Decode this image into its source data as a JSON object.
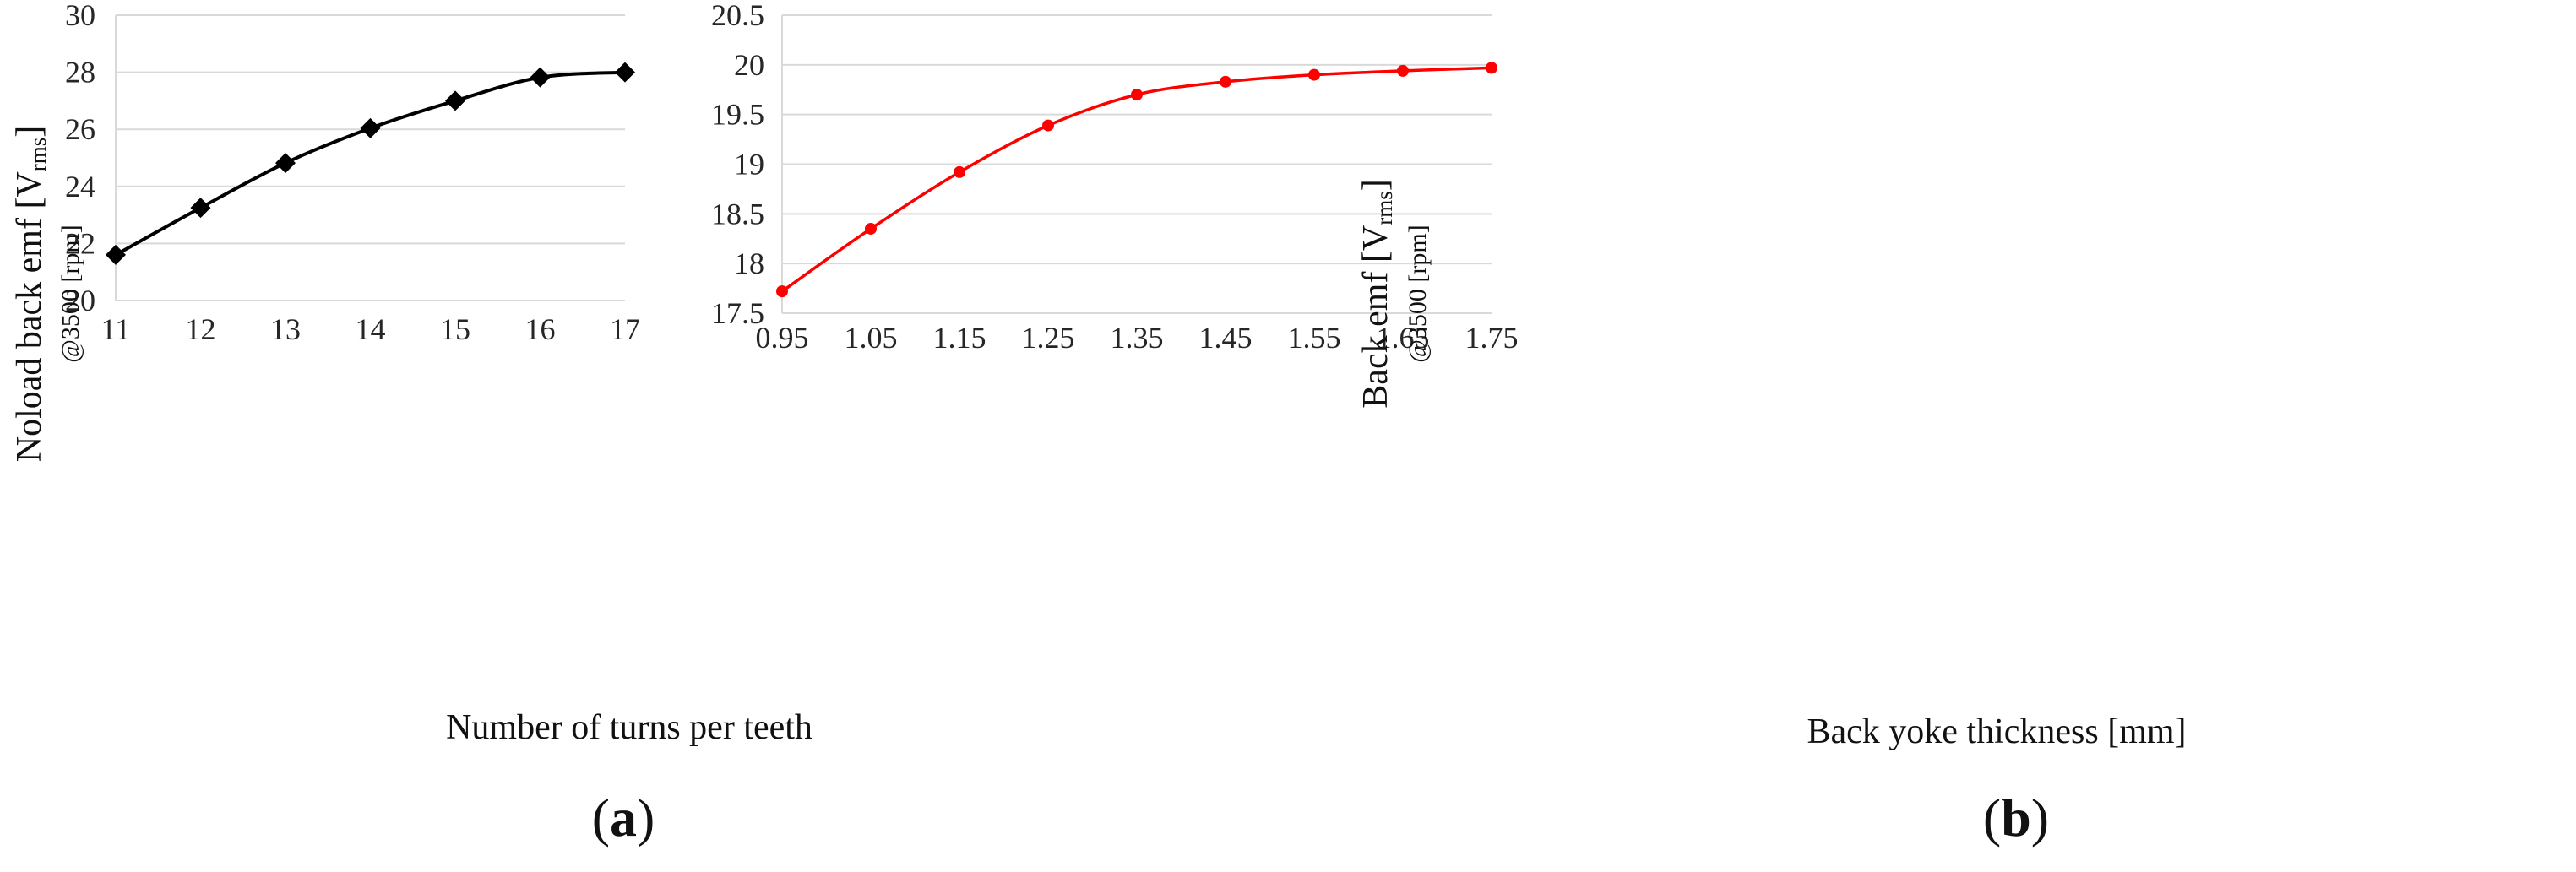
{
  "chart_data": [
    {
      "type": "line",
      "panel": "(a)",
      "panel_letter": "a",
      "xlabel": "Number of turns per teeth",
      "ylabel": {
        "main": "Noload back emf [V",
        "unit_sub": "rms",
        "close": "]",
        "condition": "@3500 [rpm]"
      },
      "x": [
        11,
        12,
        13,
        14,
        15,
        16,
        17
      ],
      "series": [
        {
          "values": [
            21.6,
            23.25,
            24.82,
            26.04,
            27.0,
            27.82,
            28.0
          ]
        }
      ],
      "xlim": [
        11,
        17
      ],
      "ylim": [
        20,
        30
      ],
      "xticks": [
        "11",
        "12",
        "13",
        "14",
        "15",
        "16",
        "17"
      ],
      "yticks": [
        "20",
        "22",
        "24",
        "26",
        "28",
        "30"
      ],
      "marker": "diamond",
      "color": "#000000",
      "grid": true
    },
    {
      "type": "line",
      "panel": "(b)",
      "panel_letter": "b",
      "xlabel": "Back yoke thickness  [mm]",
      "ylabel": {
        "main": "Back emf [V",
        "unit_sub": "rms",
        "close": "]",
        "condition": "@3500 [rpm]"
      },
      "x": [
        0.95,
        1.05,
        1.15,
        1.25,
        1.35,
        1.45,
        1.55,
        1.65,
        1.75
      ],
      "series": [
        {
          "values": [
            17.72,
            18.35,
            18.92,
            19.39,
            19.7,
            19.83,
            19.9,
            19.94,
            19.97
          ]
        }
      ],
      "xlim": [
        0.95,
        1.75
      ],
      "ylim": [
        17.5,
        20.5
      ],
      "xticks": [
        "0.95",
        "1.05",
        "1.15",
        "1.25",
        "1.35",
        "1.45",
        "1.55",
        "1.65",
        "1.75"
      ],
      "yticks": [
        "17.5",
        "18",
        "18.5",
        "19",
        "19.5",
        "20",
        "20.5"
      ],
      "marker": "circle",
      "color": "#ff0000",
      "grid": true
    }
  ]
}
